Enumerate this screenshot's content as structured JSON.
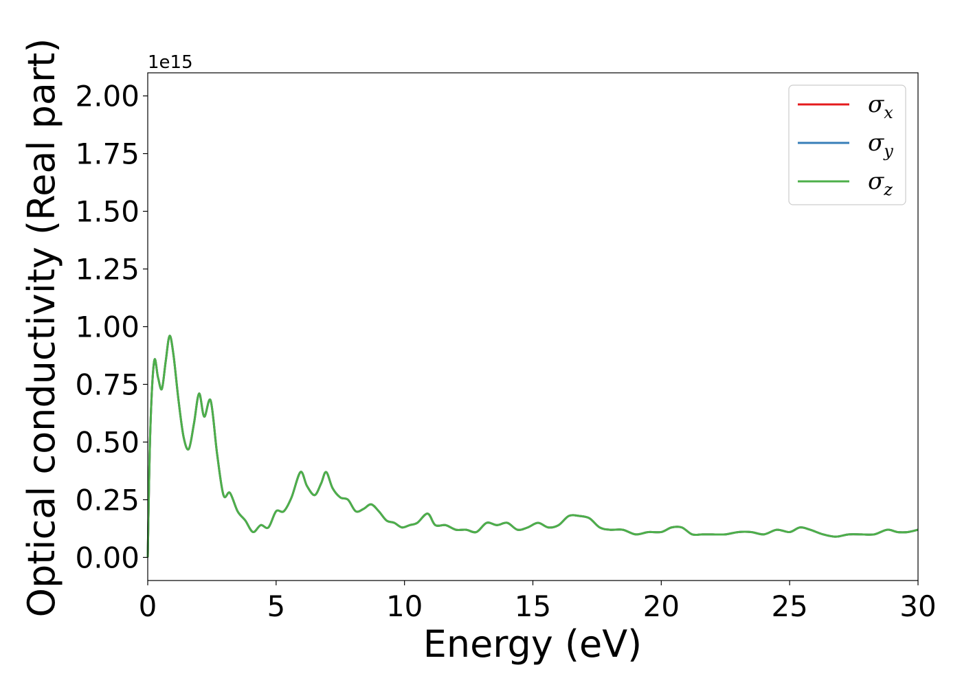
{
  "chart_data": {
    "type": "line",
    "title": "",
    "xlabel": "Energy (eV)",
    "ylabel": "Optical conductivity (Real part)",
    "y_offset_label": "1e15",
    "xlim": [
      0,
      30
    ],
    "ylim": [
      -0.1,
      2.1
    ],
    "xticks": [
      0,
      5,
      10,
      15,
      20,
      25,
      30
    ],
    "xtick_labels": [
      "0",
      "5",
      "10",
      "15",
      "20",
      "25",
      "30"
    ],
    "yticks": [
      0.0,
      0.25,
      0.5,
      0.75,
      1.0,
      1.25,
      1.5,
      1.75,
      2.0
    ],
    "ytick_labels": [
      "0.00",
      "0.25",
      "0.50",
      "0.75",
      "1.00",
      "1.25",
      "1.50",
      "1.75",
      "2.00"
    ],
    "grid": false,
    "legend_position": "top-right",
    "x": [
      0,
      0.1,
      0.25,
      0.4,
      0.55,
      0.7,
      0.85,
      1.0,
      1.2,
      1.4,
      1.6,
      1.8,
      2.0,
      2.2,
      2.45,
      2.7,
      2.95,
      3.2,
      3.5,
      3.8,
      4.1,
      4.4,
      4.7,
      5.0,
      5.3,
      5.6,
      5.95,
      6.2,
      6.5,
      6.75,
      6.95,
      7.2,
      7.5,
      7.8,
      8.1,
      8.4,
      8.7,
      9.0,
      9.3,
      9.6,
      9.9,
      10.2,
      10.5,
      10.9,
      11.2,
      11.6,
      12.0,
      12.4,
      12.8,
      13.2,
      13.6,
      14.0,
      14.4,
      14.8,
      15.2,
      15.6,
      16.0,
      16.4,
      16.8,
      17.2,
      17.6,
      18.0,
      18.5,
      19.0,
      19.5,
      20.0,
      20.4,
      20.8,
      21.2,
      21.6,
      22.0,
      22.5,
      23.0,
      23.5,
      24.0,
      24.5,
      25.0,
      25.4,
      25.8,
      26.3,
      26.8,
      27.3,
      27.8,
      28.3,
      28.8,
      29.2,
      29.6,
      30.0
    ],
    "series": [
      {
        "name": "σx",
        "color": "#e41a1c",
        "values": [
          0.0,
          0.55,
          0.85,
          0.78,
          0.73,
          0.85,
          0.96,
          0.88,
          0.68,
          0.52,
          0.47,
          0.58,
          0.71,
          0.61,
          0.68,
          0.45,
          0.27,
          0.28,
          0.2,
          0.16,
          0.11,
          0.14,
          0.13,
          0.2,
          0.2,
          0.26,
          0.37,
          0.31,
          0.27,
          0.32,
          0.37,
          0.3,
          0.26,
          0.25,
          0.2,
          0.21,
          0.23,
          0.2,
          0.16,
          0.15,
          0.13,
          0.14,
          0.15,
          0.19,
          0.14,
          0.14,
          0.12,
          0.12,
          0.11,
          0.15,
          0.14,
          0.15,
          0.12,
          0.13,
          0.15,
          0.13,
          0.14,
          0.18,
          0.18,
          0.17,
          0.13,
          0.12,
          0.12,
          0.1,
          0.11,
          0.11,
          0.13,
          0.13,
          0.1,
          0.1,
          0.1,
          0.1,
          0.11,
          0.11,
          0.1,
          0.12,
          0.11,
          0.13,
          0.12,
          0.1,
          0.09,
          0.1,
          0.1,
          0.1,
          0.12,
          0.11,
          0.11,
          0.12
        ]
      },
      {
        "name": "σy",
        "color": "#377eb8",
        "values": [
          0.0,
          0.55,
          0.85,
          0.78,
          0.73,
          0.85,
          0.96,
          0.88,
          0.68,
          0.52,
          0.47,
          0.58,
          0.71,
          0.61,
          0.68,
          0.45,
          0.27,
          0.28,
          0.2,
          0.16,
          0.11,
          0.14,
          0.13,
          0.2,
          0.2,
          0.26,
          0.37,
          0.31,
          0.27,
          0.32,
          0.37,
          0.3,
          0.26,
          0.25,
          0.2,
          0.21,
          0.23,
          0.2,
          0.16,
          0.15,
          0.13,
          0.14,
          0.15,
          0.19,
          0.14,
          0.14,
          0.12,
          0.12,
          0.11,
          0.15,
          0.14,
          0.15,
          0.12,
          0.13,
          0.15,
          0.13,
          0.14,
          0.18,
          0.18,
          0.17,
          0.13,
          0.12,
          0.12,
          0.1,
          0.11,
          0.11,
          0.13,
          0.13,
          0.1,
          0.1,
          0.1,
          0.1,
          0.11,
          0.11,
          0.1,
          0.12,
          0.11,
          0.13,
          0.12,
          0.1,
          0.09,
          0.1,
          0.1,
          0.1,
          0.12,
          0.11,
          0.11,
          0.12
        ]
      },
      {
        "name": "σz",
        "color": "#4daf4a",
        "values": [
          0.0,
          0.55,
          0.85,
          0.78,
          0.73,
          0.85,
          0.96,
          0.88,
          0.68,
          0.52,
          0.47,
          0.58,
          0.71,
          0.61,
          0.68,
          0.45,
          0.27,
          0.28,
          0.2,
          0.16,
          0.11,
          0.14,
          0.13,
          0.2,
          0.2,
          0.26,
          0.37,
          0.31,
          0.27,
          0.32,
          0.37,
          0.3,
          0.26,
          0.25,
          0.2,
          0.21,
          0.23,
          0.2,
          0.16,
          0.15,
          0.13,
          0.14,
          0.15,
          0.19,
          0.14,
          0.14,
          0.12,
          0.12,
          0.11,
          0.15,
          0.14,
          0.15,
          0.12,
          0.13,
          0.15,
          0.13,
          0.14,
          0.18,
          0.18,
          0.17,
          0.13,
          0.12,
          0.12,
          0.1,
          0.11,
          0.11,
          0.13,
          0.13,
          0.1,
          0.1,
          0.1,
          0.1,
          0.11,
          0.11,
          0.1,
          0.12,
          0.11,
          0.13,
          0.12,
          0.1,
          0.09,
          0.1,
          0.1,
          0.1,
          0.12,
          0.11,
          0.11,
          0.12
        ]
      }
    ],
    "legend": [
      {
        "symbol": "σ",
        "sub": "x",
        "color": "#e41a1c"
      },
      {
        "symbol": "σ",
        "sub": "y",
        "color": "#377eb8"
      },
      {
        "symbol": "σ",
        "sub": "z",
        "color": "#4daf4a"
      }
    ]
  }
}
